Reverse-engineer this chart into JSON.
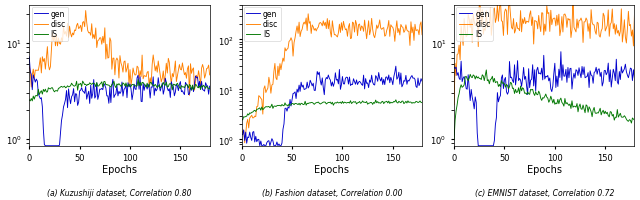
{
  "subtitles": [
    "(a) Kuzushiji dataset, Correlation 0.80",
    "(b) Fashion dataset, Correlation 0.00",
    "(c) EMNIST dataset, Correlation 0.72"
  ],
  "xlabel": "Epochs",
  "legend_labels": [
    "gen",
    "disc",
    "IS"
  ],
  "colors": {
    "gen": "#0000cc",
    "disc": "#ff8000",
    "IS": "#007700"
  },
  "n_epochs": 180
}
